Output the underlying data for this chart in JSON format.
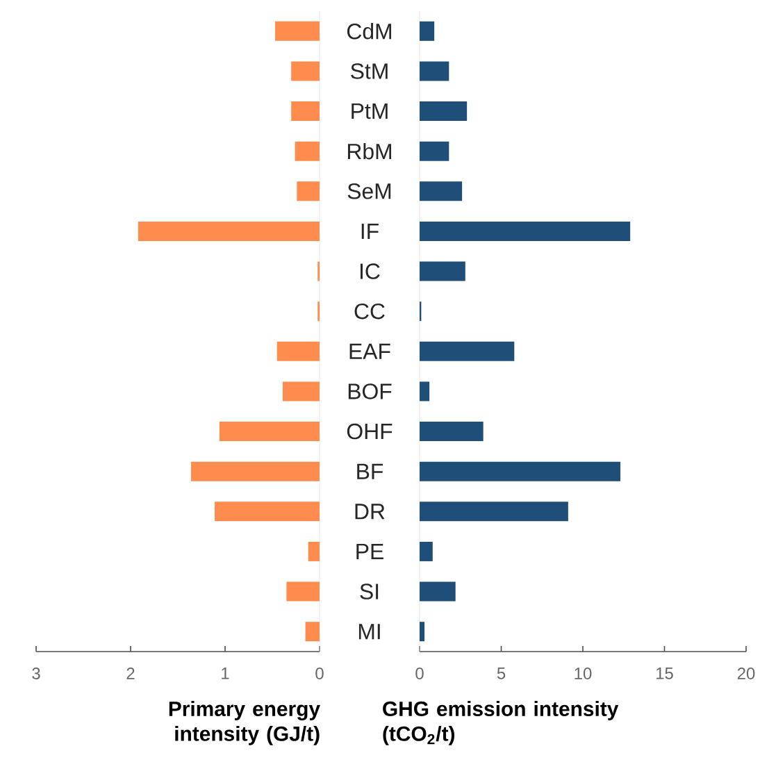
{
  "chart_data": [
    {
      "type": "bar",
      "orientation": "horizontal",
      "xlabel": "Primary energy intensity (GJ/t)",
      "categories": [
        "CdM",
        "StM",
        "PtM",
        "RbM",
        "SeM",
        "IF",
        "IC",
        "CC",
        "EAF",
        "BOF",
        "OHF",
        "BF",
        "DR",
        "PE",
        "SI",
        "MI"
      ],
      "values": [
        0.47,
        0.3,
        0.3,
        0.26,
        0.24,
        1.92,
        0.02,
        0.02,
        0.45,
        0.39,
        1.06,
        1.36,
        1.11,
        0.12,
        0.35,
        0.15
      ],
      "color": "#ff8c4f",
      "xlim": [
        3,
        0
      ],
      "xticks": [
        3,
        2,
        1,
        0
      ]
    },
    {
      "type": "bar",
      "orientation": "horizontal",
      "xlabel": "GHG emission intensity (tCO$_{2}$/t)",
      "values": [
        0.9,
        1.8,
        2.9,
        1.8,
        2.6,
        12.9,
        2.8,
        0.1,
        5.8,
        0.6,
        3.9,
        12.3,
        9.1,
        0.8,
        2.2,
        0.3
      ],
      "color": "#1f4e79",
      "xlim": [
        0,
        20
      ],
      "xticks": [
        0,
        5,
        10,
        15,
        20
      ],
      "tick_labels": "x"
    }
  ]
}
